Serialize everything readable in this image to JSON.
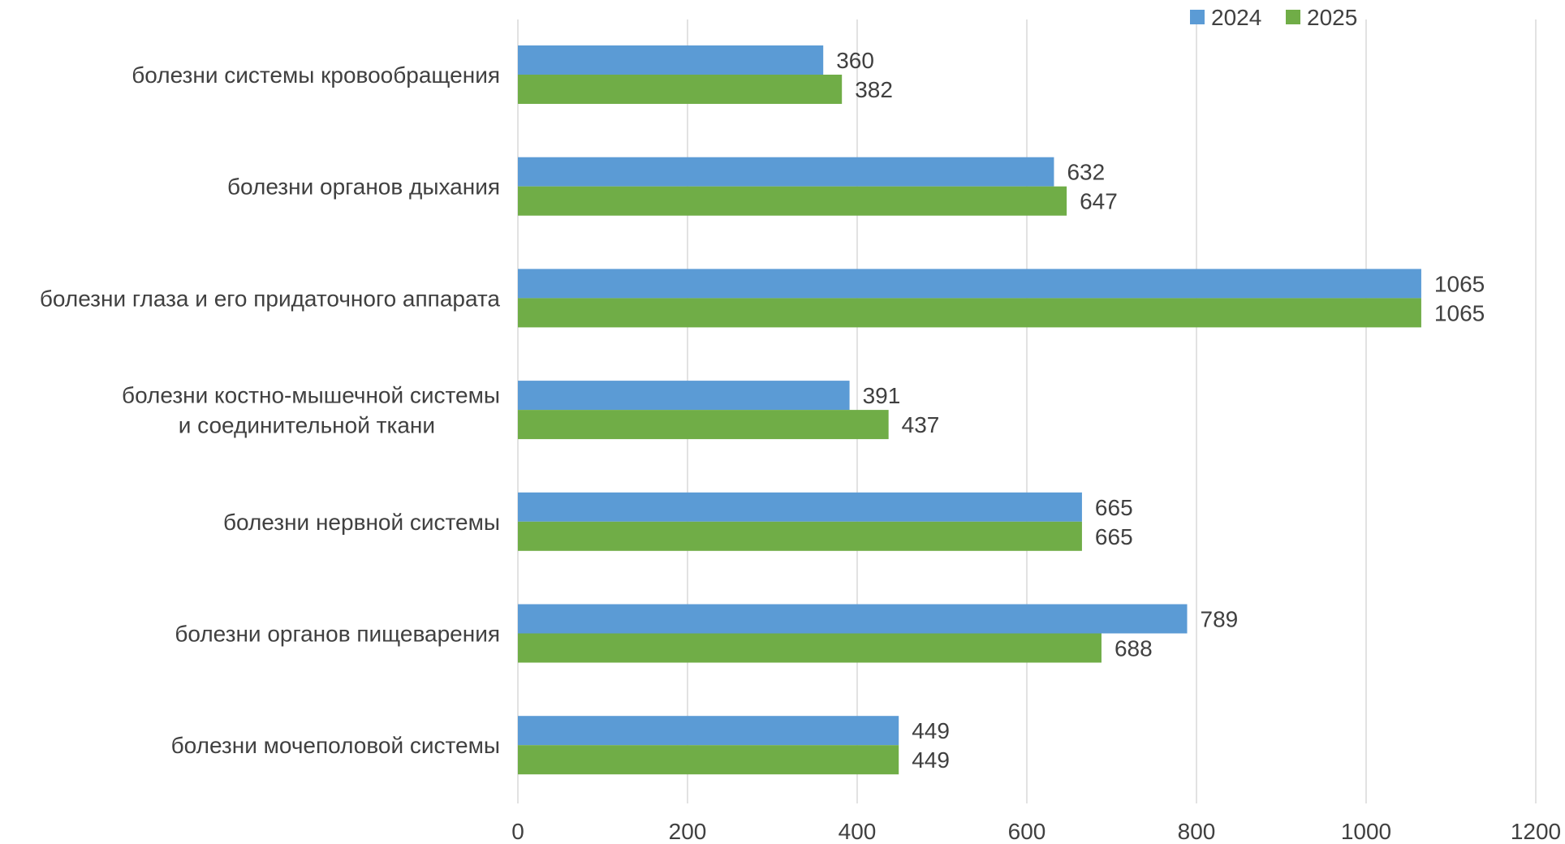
{
  "chart_data": {
    "type": "bar",
    "orientation": "horizontal",
    "categories": [
      "болезни системы кровообращения",
      "болезни органов дыхания",
      "болезни глаза и его придаточного аппарата",
      "болезни костно-мышечной системы\nи соединительной ткани",
      "болезни нервной системы",
      "болезни органов пищеварения",
      "болезни мочеполовой системы"
    ],
    "series": [
      {
        "name": "2024",
        "color": "#5b9bd5",
        "values": [
          360,
          632,
          1065,
          391,
          665,
          789,
          449
        ]
      },
      {
        "name": "2025",
        "color": "#70ad47",
        "values": [
          382,
          647,
          1065,
          437,
          665,
          688,
          449
        ]
      }
    ],
    "xlim": [
      0,
      1200
    ],
    "xticks": [
      0,
      200,
      400,
      600,
      800,
      1000,
      1200
    ],
    "grid": true,
    "legend_position": "top-right",
    "data_labels": true,
    "title": "",
    "xlabel": "",
    "ylabel": ""
  }
}
